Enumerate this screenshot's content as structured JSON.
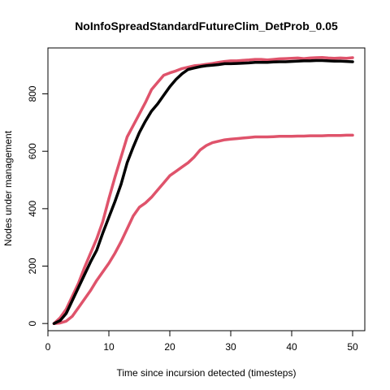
{
  "chart_data": {
    "type": "line",
    "title": "NoInfoSpreadStandardFutureClim_DetProb_0.05",
    "xlabel": "Time since incursion detected (timesteps)",
    "ylabel": "Nodes under management",
    "xlim": [
      0,
      52
    ],
    "ylim": [
      -25,
      960
    ],
    "xticks": [
      0,
      10,
      20,
      30,
      40,
      50
    ],
    "yticks": [
      0,
      200,
      400,
      600,
      800
    ],
    "grid": false,
    "legend": "none",
    "x": [
      1,
      2,
      3,
      4,
      5,
      6,
      7,
      8,
      9,
      10,
      11,
      12,
      13,
      14,
      15,
      16,
      17,
      18,
      19,
      20,
      21,
      22,
      23,
      24,
      25,
      26,
      27,
      28,
      29,
      30,
      31,
      32,
      33,
      34,
      35,
      36,
      37,
      38,
      39,
      40,
      41,
      42,
      43,
      44,
      45,
      46,
      47,
      48,
      49,
      50
    ],
    "series": [
      {
        "color": "#000000",
        "values": [
          0,
          10,
          35,
          80,
          125,
          170,
          215,
          255,
          315,
          370,
          425,
          485,
          560,
          615,
          665,
          705,
          740,
          765,
          795,
          825,
          850,
          870,
          885,
          890,
          895,
          898,
          900,
          902,
          905,
          905,
          906,
          907,
          908,
          910,
          910,
          910,
          911,
          912,
          912,
          913,
          914,
          915,
          915,
          916,
          916,
          915,
          914,
          914,
          913,
          912
        ]
      },
      {
        "color": "#DF536B",
        "values": [
          0,
          20,
          50,
          95,
          140,
          195,
          245,
          295,
          355,
          435,
          510,
          580,
          650,
          690,
          730,
          770,
          815,
          840,
          865,
          873,
          880,
          888,
          893,
          898,
          900,
          903,
          906,
          910,
          913,
          915,
          915,
          917,
          918,
          920,
          920,
          918,
          920,
          922,
          923,
          924,
          925,
          923,
          925,
          926,
          927,
          925,
          924,
          925,
          924,
          926
        ]
      },
      {
        "color": "#DF536B",
        "values": [
          0,
          2,
          8,
          25,
          55,
          85,
          115,
          150,
          180,
          210,
          245,
          285,
          330,
          375,
          405,
          420,
          440,
          465,
          490,
          515,
          530,
          545,
          560,
          580,
          605,
          620,
          630,
          635,
          640,
          642,
          644,
          646,
          648,
          650,
          650,
          650,
          651,
          652,
          652,
          652,
          653,
          653,
          654,
          654,
          654,
          655,
          655,
          655,
          656,
          656
        ]
      }
    ]
  }
}
